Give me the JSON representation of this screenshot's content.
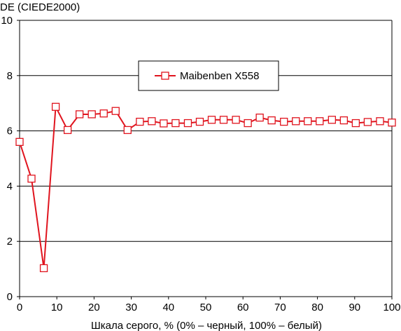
{
  "chart_data": {
    "type": "line",
    "title": "",
    "ylabel": "DE (CIEDE2000)",
    "xlabel": "Шкала серого, % (0% – черный, 100% – белый)",
    "xlim": [
      0,
      100
    ],
    "ylim": [
      0,
      10
    ],
    "xticks": [
      "0",
      "10",
      "20",
      "30",
      "40",
      "50",
      "60",
      "70",
      "80",
      "90",
      "100"
    ],
    "yticks": [
      "0",
      "2",
      "4",
      "6",
      "8",
      "10"
    ],
    "grid": "horizontal",
    "legend_position": "upper-center",
    "series": [
      {
        "name": "Maibenben X558",
        "color": "#e0141e",
        "marker": "square-open",
        "x": [
          0,
          3.2,
          6.5,
          9.7,
          12.9,
          16.1,
          19.4,
          22.6,
          25.8,
          29,
          32.3,
          35.5,
          38.7,
          41.9,
          45.2,
          48.4,
          51.6,
          54.8,
          58.1,
          61.3,
          64.5,
          67.7,
          71,
          74.2,
          77.4,
          80.6,
          83.9,
          87.1,
          90.3,
          93.5,
          96.8,
          100
        ],
        "y": [
          5.6,
          4.27,
          1.03,
          6.87,
          6.03,
          6.6,
          6.6,
          6.63,
          6.72,
          6.03,
          6.33,
          6.35,
          6.27,
          6.28,
          6.28,
          6.33,
          6.4,
          6.4,
          6.4,
          6.28,
          6.48,
          6.38,
          6.33,
          6.35,
          6.35,
          6.35,
          6.4,
          6.38,
          6.28,
          6.32,
          6.35,
          6.3
        ]
      }
    ]
  }
}
